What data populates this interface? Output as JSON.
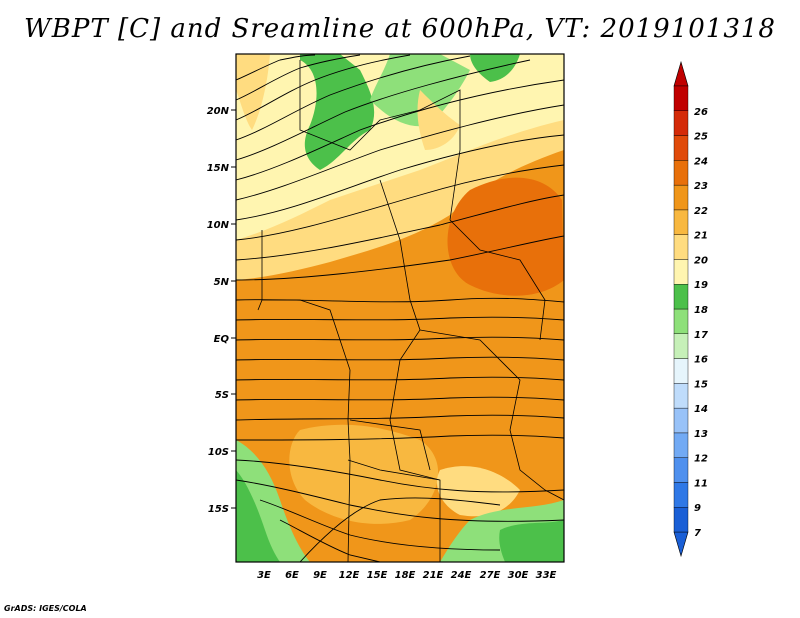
{
  "title": "WBPT [C] and Sreamline at 600hPa, VT: 2019101318",
  "credit": "GrADS: IGES/COLA",
  "map": {
    "lat_labels": [
      "20N",
      "15N",
      "10N",
      "5N",
      "EQ",
      "5S",
      "10S",
      "15S"
    ],
    "lon_labels": [
      "3E",
      "6E",
      "9E",
      "12E",
      "15E",
      "18E",
      "21E",
      "24E",
      "27E",
      "30E",
      "33E"
    ]
  },
  "colorbar": {
    "labels": [
      "7",
      "9",
      "11",
      "12",
      "13",
      "14",
      "15",
      "16",
      "17",
      "18",
      "19",
      "20",
      "21",
      "22",
      "23",
      "24",
      "25",
      "26"
    ],
    "colors": [
      "#1a5fd6",
      "#2f78e6",
      "#4f90ee",
      "#72aaf4",
      "#98c2f8",
      "#bfdcfb",
      "#e6f5fc",
      "#c6f0b8",
      "#8ee07a",
      "#4cc04a",
      "#fff5b0",
      "#ffdc80",
      "#f8b840",
      "#f0961a",
      "#e8700a",
      "#e04a0a",
      "#d42a08",
      "#c00000"
    ]
  }
}
